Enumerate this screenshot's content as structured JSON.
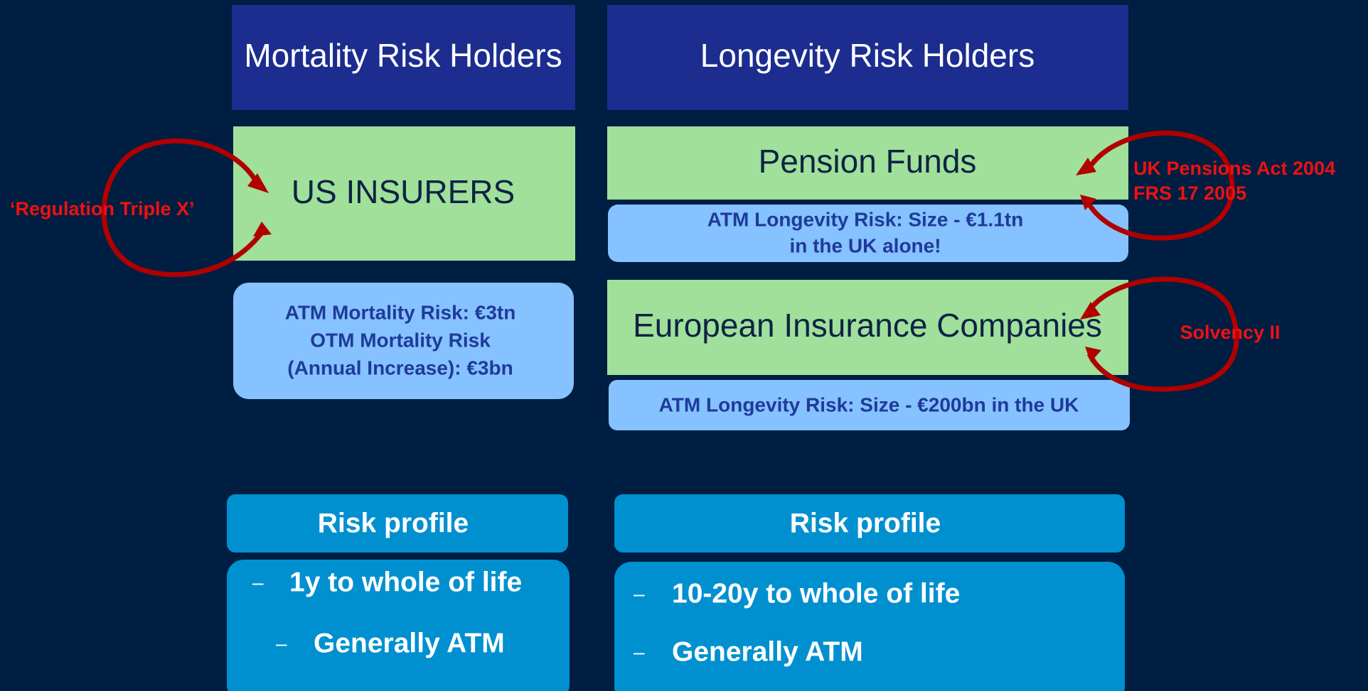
{
  "left": {
    "header": "Mortality Risk Holders",
    "holder": "US INSURERS",
    "note": [
      "ATM Mortality Risk: €3tn",
      "OTM Mortality Risk",
      "(Annual Increase): €3bn"
    ],
    "annotation": "‘Regulation Triple X’",
    "profile": {
      "title": "Risk profile",
      "items": [
        "1y to whole of life",
        "Generally ATM"
      ]
    }
  },
  "right": {
    "header": "Longevity Risk Holders",
    "holders": [
      {
        "name": "Pension Funds",
        "note": [
          "ATM Longevity Risk: Size - €1.1tn",
          "in the UK alone!"
        ],
        "annotation": [
          "UK Pensions Act 2004",
          "FRS 17 2005"
        ]
      },
      {
        "name": "European Insurance Companies",
        "note": [
          "ATM Longevity Risk: Size - €200bn  in the UK"
        ],
        "annotation": [
          "Solvency II"
        ]
      }
    ],
    "profile": {
      "title": "Risk profile",
      "items": [
        "10-20y to whole of life",
        "Generally ATM"
      ]
    }
  }
}
